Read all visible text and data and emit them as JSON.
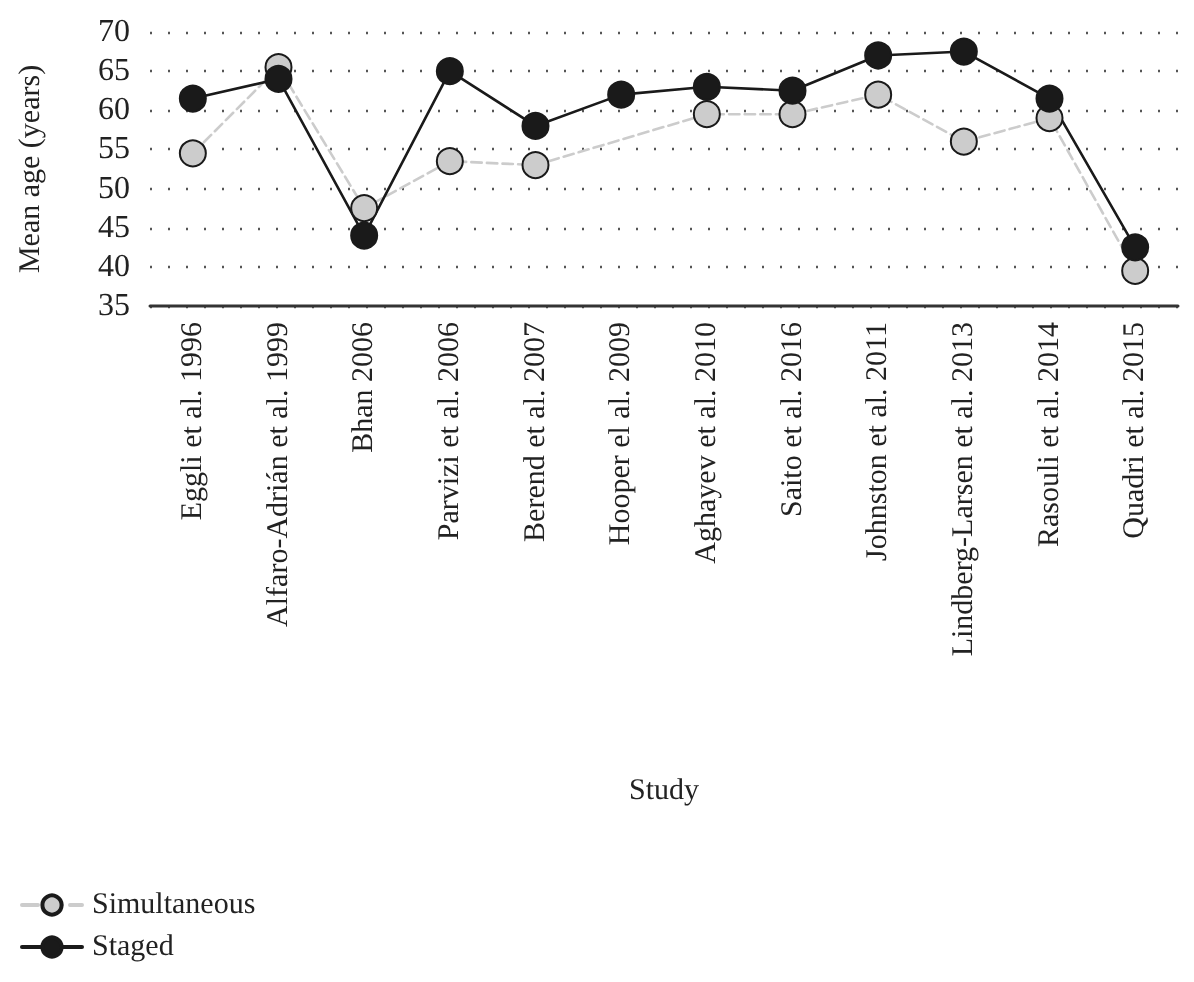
{
  "chart_data": {
    "type": "line",
    "xlabel": "Study",
    "ylabel": "Mean age (years)",
    "categories": [
      "Eggli et al. 1996",
      "Alfaro-Adrián et al. 1999",
      "Bhan 2006",
      "Parvizi et al. 2006",
      "Berend et al. 2007",
      "Hooper el al. 2009",
      "Aghayev et al. 2010",
      "Saito et al. 2016",
      "Johnston et al. 2011",
      "Lindberg-Larsen et al. 2013",
      "Rasouli et al. 2014",
      "Quadri et al. 2015"
    ],
    "series": [
      {
        "name": "Simultaneous",
        "color": "#cccccc",
        "line_style": "dashed",
        "values": [
          54.5,
          65.5,
          47.5,
          53.5,
          53,
          null,
          59.5,
          59.5,
          62,
          56,
          59,
          39.5
        ]
      },
      {
        "name": "Staged",
        "color": "#1a1a1a",
        "line_style": "solid",
        "values": [
          61.5,
          64,
          44,
          65,
          58,
          62,
          63,
          62.5,
          67,
          67.5,
          61.5,
          42.5
        ]
      }
    ],
    "ylim": [
      35,
      70
    ],
    "yticks": [
      35,
      40,
      45,
      50,
      55,
      60,
      65,
      70
    ],
    "grid": "y",
    "legend": "bottom left",
    "marker": "circle"
  }
}
